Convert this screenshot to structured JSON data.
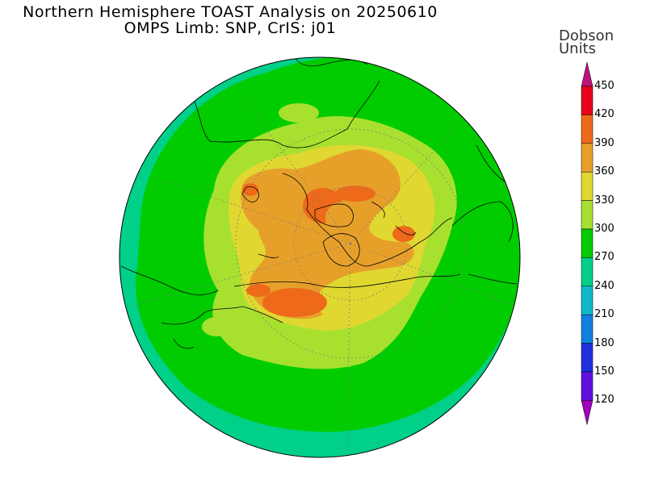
{
  "title_line1": "Northern Hemisphere TOAST Analysis on 20250610",
  "title_line2": "OMPS Limb: SNP, CrIS: j01",
  "colorbar": {
    "title_line1": "Dobson",
    "title_line2": "Units",
    "levels": [
      "450",
      "420",
      "390",
      "360",
      "330",
      "300",
      "270",
      "240",
      "210",
      "180",
      "150",
      "120"
    ],
    "colors": {
      "above450": "#c0107a",
      "420_450": "#e8001a",
      "390_420": "#ee6a1a",
      "360_390": "#e6a02a",
      "330_360": "#e0d830",
      "300_330": "#a8e030",
      "270_300": "#00cc00",
      "240_270": "#00d088",
      "210_240": "#10b8c8",
      "180_210": "#1080e0",
      "150_180": "#2030e0",
      "120_150": "#6010e0",
      "below120": "#a000c0"
    }
  },
  "map": {
    "projection": "north-polar-stereographic",
    "field": "total column ozone",
    "units": "Dobson Units"
  }
}
